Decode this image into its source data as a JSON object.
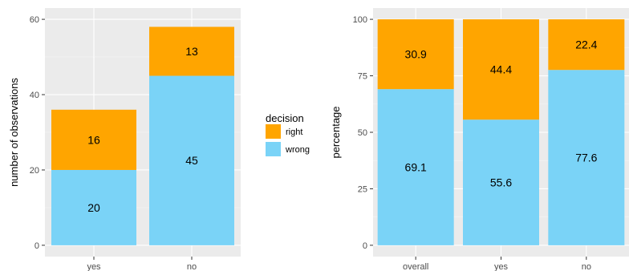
{
  "colors": {
    "right": "#FFA500",
    "wrong": "#7AD3F7",
    "panel": "#EBEBEB",
    "grid_major": "#FFFFFF",
    "grid_minor": "#F5F5F5"
  },
  "legend": {
    "title": "decision",
    "items": [
      {
        "key": "right",
        "label": "right"
      },
      {
        "key": "wrong",
        "label": "wrong"
      }
    ]
  },
  "chart_data": [
    {
      "type": "bar",
      "stacked": true,
      "categories": [
        "yes",
        "no"
      ],
      "series": [
        {
          "name": "wrong",
          "values": [
            20,
            45
          ]
        },
        {
          "name": "right",
          "values": [
            16,
            13
          ]
        }
      ],
      "labels": {
        "wrong": [
          "20",
          "45"
        ],
        "right": [
          "16",
          "13"
        ]
      },
      "xlabel": "",
      "ylabel": "number of observations",
      "ylim": [
        0,
        60
      ],
      "yticks": [
        0,
        20,
        40,
        60
      ],
      "grid": true,
      "legend": "right"
    },
    {
      "type": "bar",
      "stacked": true,
      "categories": [
        "overall",
        "yes",
        "no"
      ],
      "series": [
        {
          "name": "wrong",
          "values": [
            69.1,
            55.6,
            77.6
          ]
        },
        {
          "name": "right",
          "values": [
            30.9,
            44.4,
            22.4
          ]
        }
      ],
      "labels": {
        "wrong": [
          "69.1",
          "55.6",
          "77.6"
        ],
        "right": [
          "30.9",
          "44.4",
          "22.4"
        ]
      },
      "xlabel": "",
      "ylabel": "percentage",
      "ylim": [
        0,
        100
      ],
      "yticks": [
        0,
        25,
        50,
        75,
        100
      ],
      "grid": true
    }
  ]
}
